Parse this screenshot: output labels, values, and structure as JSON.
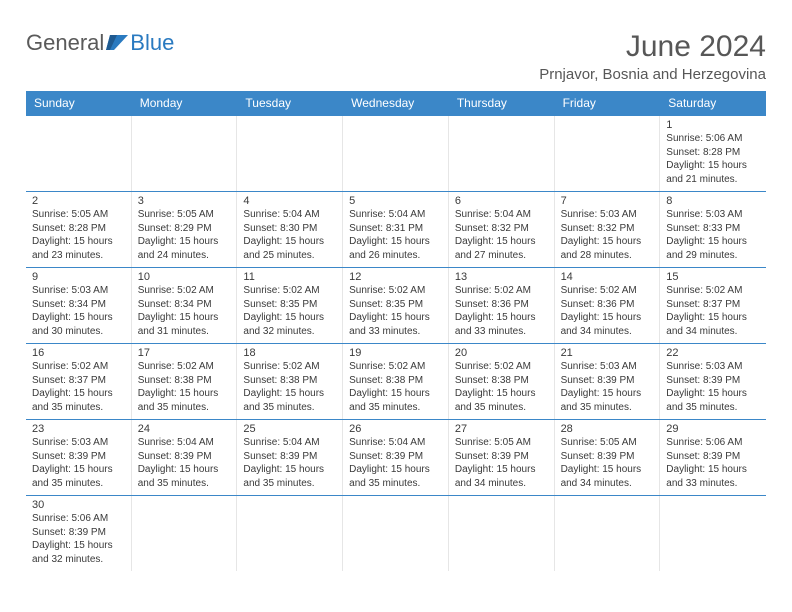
{
  "logo": {
    "part1": "General",
    "part2": "Blue"
  },
  "title": "June 2024",
  "location": "Prnjavor, Bosnia and Herzegovina",
  "weekday_labels": [
    "Sunday",
    "Monday",
    "Tuesday",
    "Wednesday",
    "Thursday",
    "Friday",
    "Saturday"
  ],
  "style": {
    "header_bg": "#3b87c8",
    "header_fg": "#ffffff",
    "row_border": "#3b87c8",
    "cell_border": "#e6e6e6",
    "text_color": "#3a3a3a",
    "title_color": "#575757",
    "logo_general_color": "#5a5a5a",
    "logo_blue_color": "#2a7ac0",
    "body_bg": "#ffffff",
    "title_fontsize": 30,
    "location_fontsize": 15,
    "weekday_fontsize": 12,
    "daynum_fontsize": 11,
    "info_fontsize": 10
  },
  "weeks": [
    [
      null,
      null,
      null,
      null,
      null,
      null,
      {
        "day": "1",
        "sunrise": "Sunrise: 5:06 AM",
        "sunset": "Sunset: 8:28 PM",
        "daylight1": "Daylight: 15 hours",
        "daylight2": "and 21 minutes."
      }
    ],
    [
      {
        "day": "2",
        "sunrise": "Sunrise: 5:05 AM",
        "sunset": "Sunset: 8:28 PM",
        "daylight1": "Daylight: 15 hours",
        "daylight2": "and 23 minutes."
      },
      {
        "day": "3",
        "sunrise": "Sunrise: 5:05 AM",
        "sunset": "Sunset: 8:29 PM",
        "daylight1": "Daylight: 15 hours",
        "daylight2": "and 24 minutes."
      },
      {
        "day": "4",
        "sunrise": "Sunrise: 5:04 AM",
        "sunset": "Sunset: 8:30 PM",
        "daylight1": "Daylight: 15 hours",
        "daylight2": "and 25 minutes."
      },
      {
        "day": "5",
        "sunrise": "Sunrise: 5:04 AM",
        "sunset": "Sunset: 8:31 PM",
        "daylight1": "Daylight: 15 hours",
        "daylight2": "and 26 minutes."
      },
      {
        "day": "6",
        "sunrise": "Sunrise: 5:04 AM",
        "sunset": "Sunset: 8:32 PM",
        "daylight1": "Daylight: 15 hours",
        "daylight2": "and 27 minutes."
      },
      {
        "day": "7",
        "sunrise": "Sunrise: 5:03 AM",
        "sunset": "Sunset: 8:32 PM",
        "daylight1": "Daylight: 15 hours",
        "daylight2": "and 28 minutes."
      },
      {
        "day": "8",
        "sunrise": "Sunrise: 5:03 AM",
        "sunset": "Sunset: 8:33 PM",
        "daylight1": "Daylight: 15 hours",
        "daylight2": "and 29 minutes."
      }
    ],
    [
      {
        "day": "9",
        "sunrise": "Sunrise: 5:03 AM",
        "sunset": "Sunset: 8:34 PM",
        "daylight1": "Daylight: 15 hours",
        "daylight2": "and 30 minutes."
      },
      {
        "day": "10",
        "sunrise": "Sunrise: 5:02 AM",
        "sunset": "Sunset: 8:34 PM",
        "daylight1": "Daylight: 15 hours",
        "daylight2": "and 31 minutes."
      },
      {
        "day": "11",
        "sunrise": "Sunrise: 5:02 AM",
        "sunset": "Sunset: 8:35 PM",
        "daylight1": "Daylight: 15 hours",
        "daylight2": "and 32 minutes."
      },
      {
        "day": "12",
        "sunrise": "Sunrise: 5:02 AM",
        "sunset": "Sunset: 8:35 PM",
        "daylight1": "Daylight: 15 hours",
        "daylight2": "and 33 minutes."
      },
      {
        "day": "13",
        "sunrise": "Sunrise: 5:02 AM",
        "sunset": "Sunset: 8:36 PM",
        "daylight1": "Daylight: 15 hours",
        "daylight2": "and 33 minutes."
      },
      {
        "day": "14",
        "sunrise": "Sunrise: 5:02 AM",
        "sunset": "Sunset: 8:36 PM",
        "daylight1": "Daylight: 15 hours",
        "daylight2": "and 34 minutes."
      },
      {
        "day": "15",
        "sunrise": "Sunrise: 5:02 AM",
        "sunset": "Sunset: 8:37 PM",
        "daylight1": "Daylight: 15 hours",
        "daylight2": "and 34 minutes."
      }
    ],
    [
      {
        "day": "16",
        "sunrise": "Sunrise: 5:02 AM",
        "sunset": "Sunset: 8:37 PM",
        "daylight1": "Daylight: 15 hours",
        "daylight2": "and 35 minutes."
      },
      {
        "day": "17",
        "sunrise": "Sunrise: 5:02 AM",
        "sunset": "Sunset: 8:38 PM",
        "daylight1": "Daylight: 15 hours",
        "daylight2": "and 35 minutes."
      },
      {
        "day": "18",
        "sunrise": "Sunrise: 5:02 AM",
        "sunset": "Sunset: 8:38 PM",
        "daylight1": "Daylight: 15 hours",
        "daylight2": "and 35 minutes."
      },
      {
        "day": "19",
        "sunrise": "Sunrise: 5:02 AM",
        "sunset": "Sunset: 8:38 PM",
        "daylight1": "Daylight: 15 hours",
        "daylight2": "and 35 minutes."
      },
      {
        "day": "20",
        "sunrise": "Sunrise: 5:02 AM",
        "sunset": "Sunset: 8:38 PM",
        "daylight1": "Daylight: 15 hours",
        "daylight2": "and 35 minutes."
      },
      {
        "day": "21",
        "sunrise": "Sunrise: 5:03 AM",
        "sunset": "Sunset: 8:39 PM",
        "daylight1": "Daylight: 15 hours",
        "daylight2": "and 35 minutes."
      },
      {
        "day": "22",
        "sunrise": "Sunrise: 5:03 AM",
        "sunset": "Sunset: 8:39 PM",
        "daylight1": "Daylight: 15 hours",
        "daylight2": "and 35 minutes."
      }
    ],
    [
      {
        "day": "23",
        "sunrise": "Sunrise: 5:03 AM",
        "sunset": "Sunset: 8:39 PM",
        "daylight1": "Daylight: 15 hours",
        "daylight2": "and 35 minutes."
      },
      {
        "day": "24",
        "sunrise": "Sunrise: 5:04 AM",
        "sunset": "Sunset: 8:39 PM",
        "daylight1": "Daylight: 15 hours",
        "daylight2": "and 35 minutes."
      },
      {
        "day": "25",
        "sunrise": "Sunrise: 5:04 AM",
        "sunset": "Sunset: 8:39 PM",
        "daylight1": "Daylight: 15 hours",
        "daylight2": "and 35 minutes."
      },
      {
        "day": "26",
        "sunrise": "Sunrise: 5:04 AM",
        "sunset": "Sunset: 8:39 PM",
        "daylight1": "Daylight: 15 hours",
        "daylight2": "and 35 minutes."
      },
      {
        "day": "27",
        "sunrise": "Sunrise: 5:05 AM",
        "sunset": "Sunset: 8:39 PM",
        "daylight1": "Daylight: 15 hours",
        "daylight2": "and 34 minutes."
      },
      {
        "day": "28",
        "sunrise": "Sunrise: 5:05 AM",
        "sunset": "Sunset: 8:39 PM",
        "daylight1": "Daylight: 15 hours",
        "daylight2": "and 34 minutes."
      },
      {
        "day": "29",
        "sunrise": "Sunrise: 5:06 AM",
        "sunset": "Sunset: 8:39 PM",
        "daylight1": "Daylight: 15 hours",
        "daylight2": "and 33 minutes."
      }
    ],
    [
      {
        "day": "30",
        "sunrise": "Sunrise: 5:06 AM",
        "sunset": "Sunset: 8:39 PM",
        "daylight1": "Daylight: 15 hours",
        "daylight2": "and 32 minutes."
      },
      null,
      null,
      null,
      null,
      null,
      null
    ]
  ]
}
